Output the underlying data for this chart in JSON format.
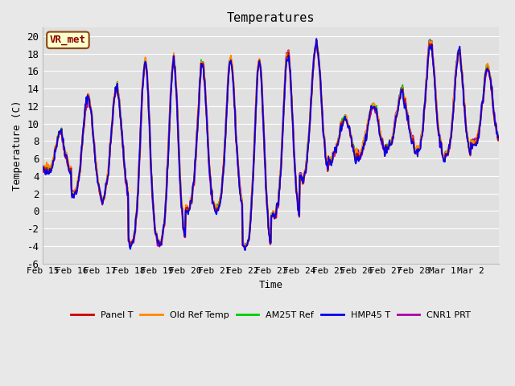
{
  "title": "Temperatures",
  "xlabel": "Time",
  "ylabel": "Temperature (C)",
  "annotation": "VR_met",
  "ylim": [
    -6,
    21
  ],
  "yticks": [
    -6,
    -4,
    -2,
    0,
    2,
    4,
    6,
    8,
    10,
    12,
    14,
    16,
    18,
    20
  ],
  "x_labels": [
    "Feb 15",
    "Feb 16",
    "Feb 17",
    "Feb 18",
    "Feb 19",
    "Feb 20",
    "Feb 21",
    "Feb 22",
    "Feb 23",
    "Feb 24",
    "Feb 25",
    "Feb 26",
    "Feb 27",
    "Feb 28",
    "Mar 1",
    "Mar 2"
  ],
  "series_colors": [
    "#cc0000",
    "#ff8800",
    "#00cc00",
    "#0000ee",
    "#aa00aa"
  ],
  "series_names": [
    "Panel T",
    "Old Ref Temp",
    "AM25T Ref",
    "HMP45 T",
    "CNR1 PRT"
  ],
  "background_color": "#e8e8e8",
  "plot_bg_color": "#e0e0e0",
  "grid_color": "#ffffff",
  "title_fontsize": 11,
  "tick_fontsize": 8,
  "label_fontsize": 9
}
